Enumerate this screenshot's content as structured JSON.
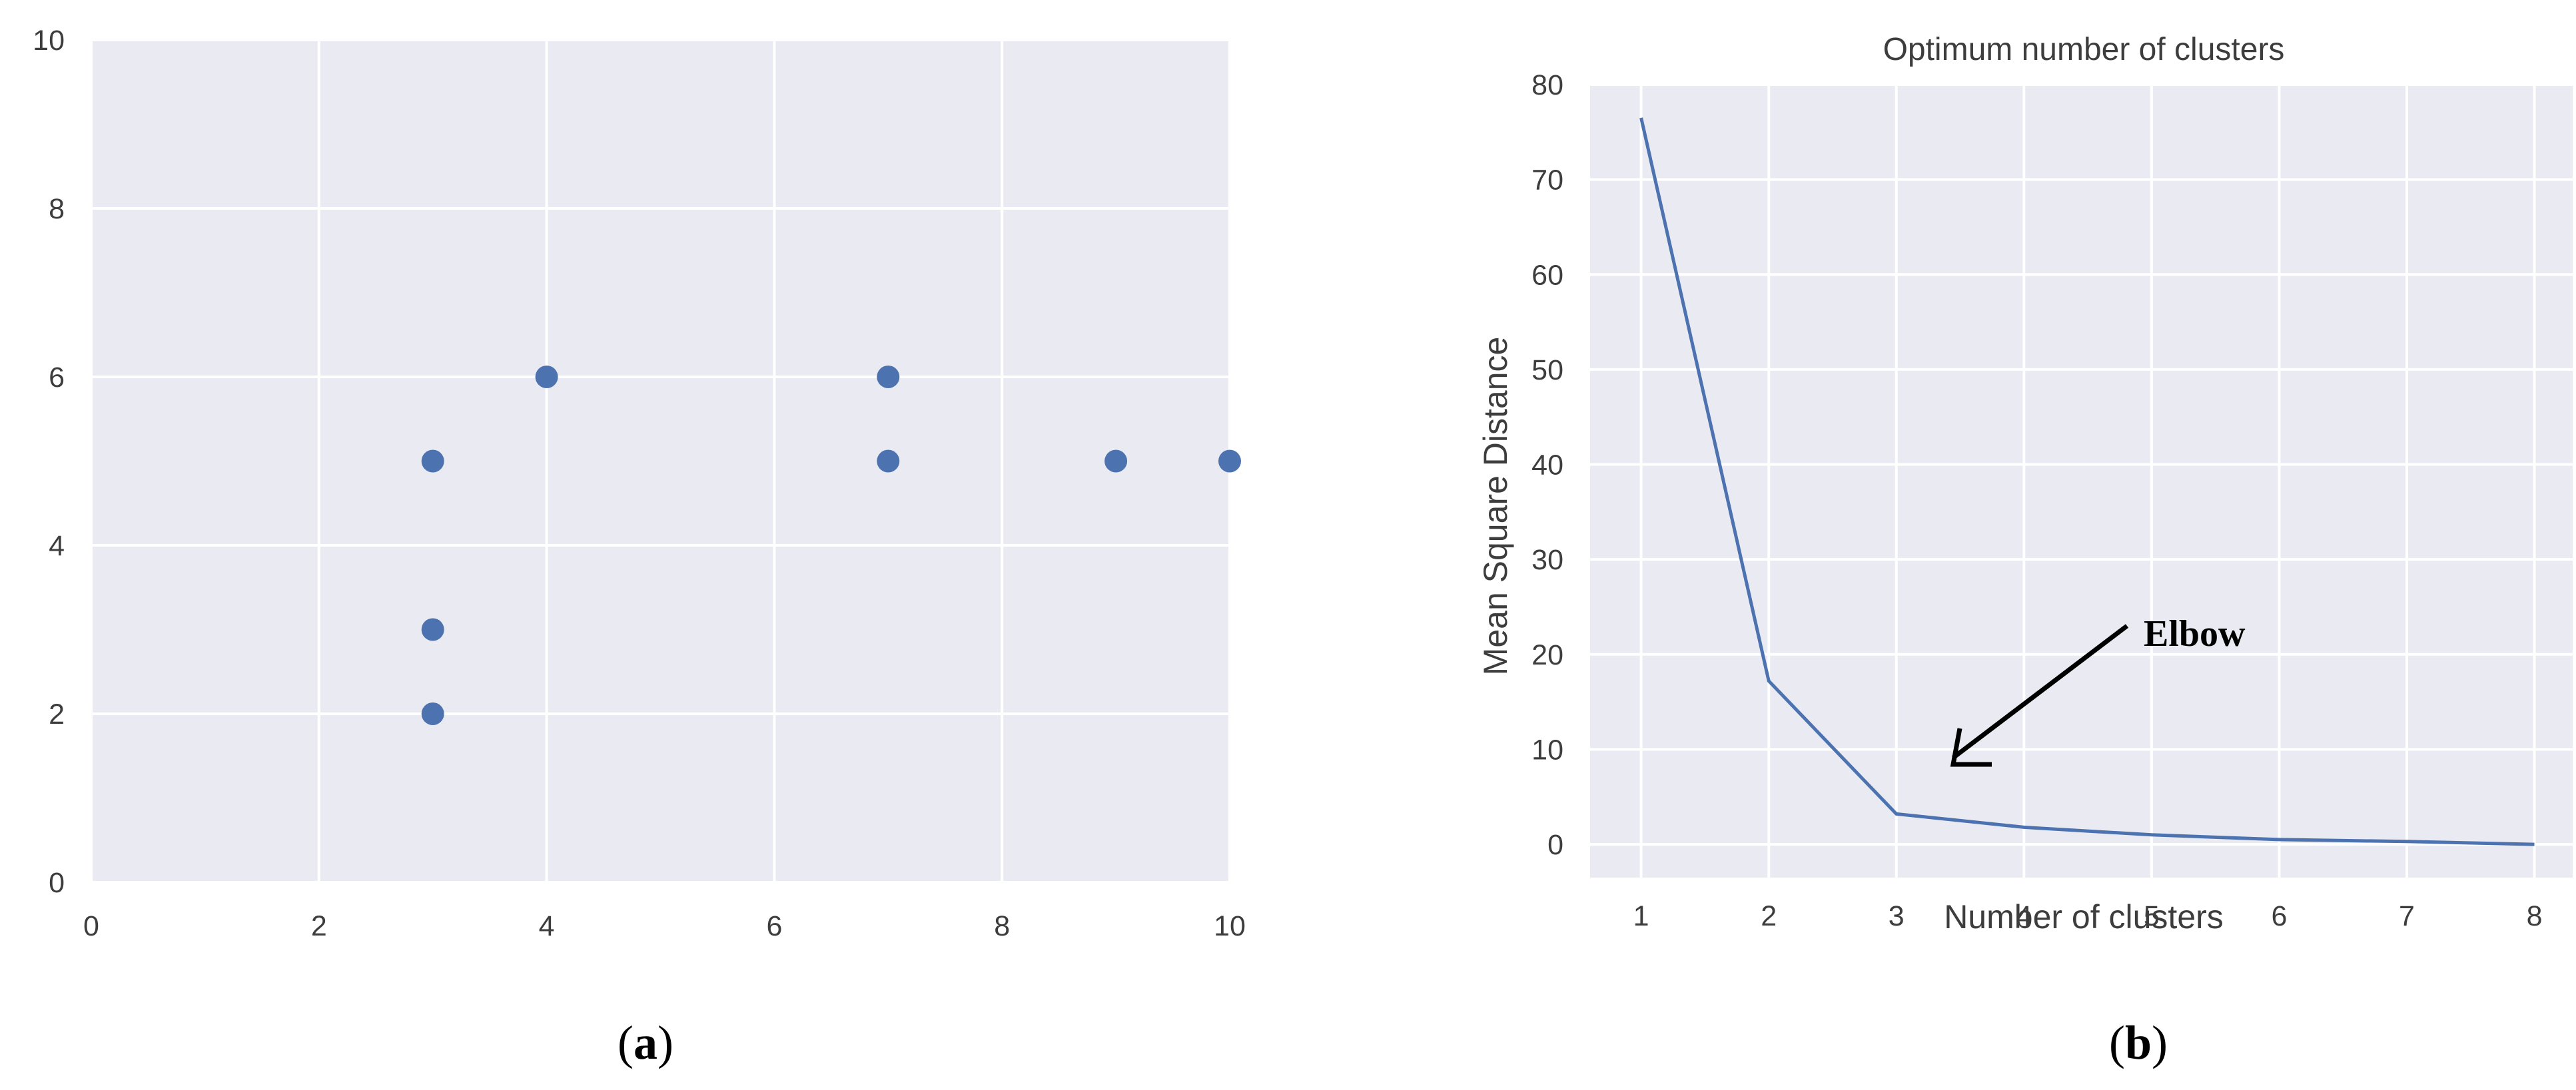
{
  "chart_data": [
    {
      "panel": "a",
      "type": "scatter",
      "title": "",
      "xlabel": "",
      "ylabel": "",
      "xlim": [
        0,
        10
      ],
      "ylim": [
        0,
        10
      ],
      "xticks": [
        0,
        2,
        4,
        6,
        8,
        10
      ],
      "yticks": [
        0,
        2,
        4,
        6,
        8,
        10
      ],
      "grid": true,
      "points": [
        {
          "x": 3,
          "y": 5
        },
        {
          "x": 3,
          "y": 3
        },
        {
          "x": 3,
          "y": 2
        },
        {
          "x": 4,
          "y": 6
        },
        {
          "x": 7,
          "y": 6
        },
        {
          "x": 7,
          "y": 5
        },
        {
          "x": 9,
          "y": 5
        },
        {
          "x": 10,
          "y": 5
        }
      ],
      "color": "#4c72b0"
    },
    {
      "panel": "b",
      "type": "line",
      "title": "Optimum number of clusters",
      "xlabel": "Number of clusters",
      "ylabel": "Mean Square Distance",
      "xlim": [
        0.6,
        8.3
      ],
      "ylim": [
        -3.5,
        80
      ],
      "xticks": [
        1,
        2,
        3,
        4,
        5,
        6,
        7,
        8
      ],
      "yticks": [
        0,
        10,
        20,
        30,
        40,
        50,
        60,
        70,
        80
      ],
      "grid": true,
      "series": [
        {
          "x": [
            1,
            2,
            3,
            4,
            5,
            6,
            7,
            8
          ],
          "values": [
            76.5,
            17.2,
            3.2,
            1.8,
            1.0,
            0.5,
            0.3,
            0.0
          ]
        }
      ],
      "annotation": {
        "text": "Elbow",
        "x": 3,
        "y": 3.2
      },
      "color": "#4c72b0"
    }
  ],
  "labels": {
    "panel_a": "a",
    "panel_b": "b",
    "open": "(",
    "close": ")"
  }
}
